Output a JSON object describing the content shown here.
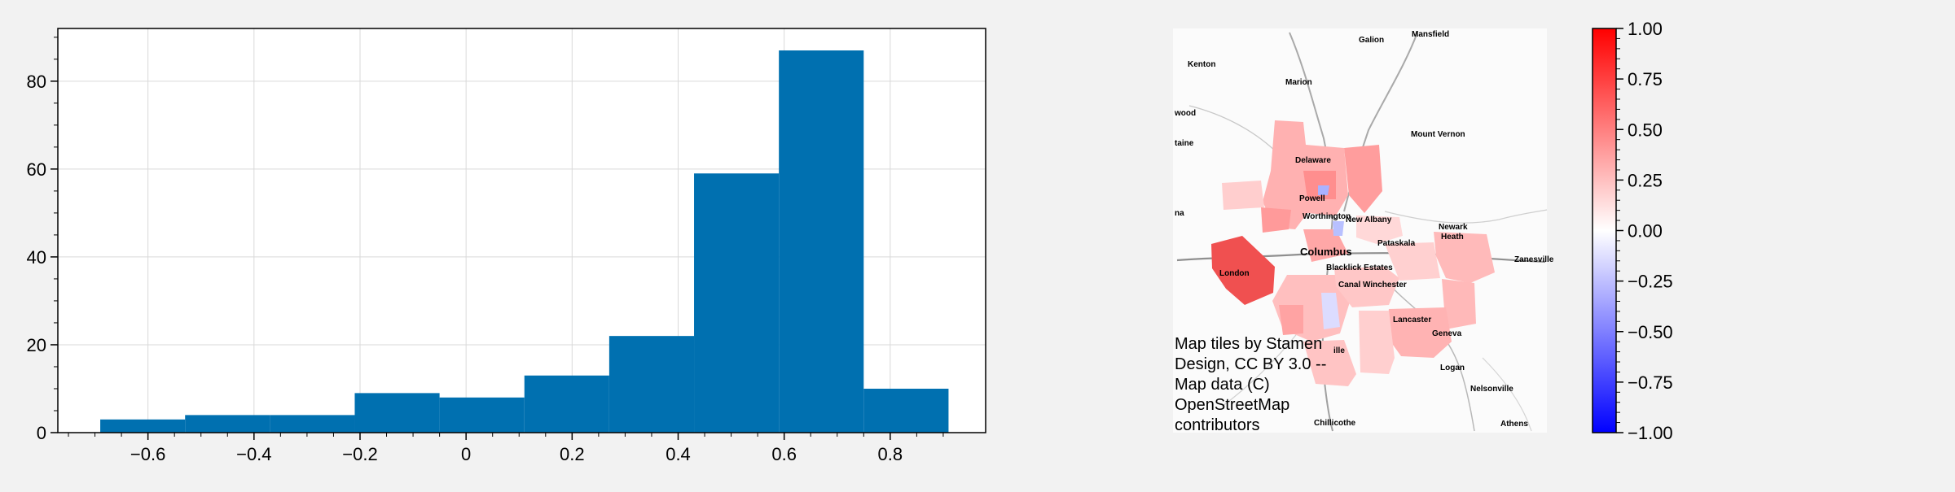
{
  "chart_data": [
    {
      "type": "bar",
      "subtype": "histogram",
      "bins": [
        {
          "x0": -0.69,
          "x1": -0.53,
          "count": 3
        },
        {
          "x0": -0.53,
          "x1": -0.37,
          "count": 4
        },
        {
          "x0": -0.37,
          "x1": -0.21,
          "count": 4
        },
        {
          "x0": -0.21,
          "x1": -0.05,
          "count": 9
        },
        {
          "x0": -0.05,
          "x1": 0.11,
          "count": 8
        },
        {
          "x0": 0.11,
          "x1": 0.27,
          "count": 13
        },
        {
          "x0": 0.27,
          "x1": 0.43,
          "count": 22
        },
        {
          "x0": 0.43,
          "x1": 0.59,
          "count": 59
        },
        {
          "x0": 0.59,
          "x1": 0.75,
          "count": 87
        },
        {
          "x0": 0.75,
          "x1": 0.91,
          "count": 10
        }
      ],
      "xlim": [
        -0.77,
        0.98
      ],
      "ylim": [
        0,
        92
      ],
      "xticks": [
        -0.6,
        -0.4,
        -0.2,
        0,
        0.2,
        0.4,
        0.6,
        0.8
      ],
      "xtick_labels": [
        "−0.6",
        "−0.4",
        "−0.2",
        "0",
        "0.2",
        "0.4",
        "0.6",
        "0.8"
      ],
      "yticks": [
        0,
        20,
        40,
        60,
        80
      ],
      "ytick_labels": [
        "0",
        "20",
        "40",
        "60",
        "80"
      ],
      "grid": true,
      "bar_color": "#0070b0"
    },
    {
      "type": "map",
      "colormap": "bwr",
      "vmin": -1.0,
      "vmax": 1.0,
      "colorbar_ticks": [
        1.0,
        0.75,
        0.5,
        0.25,
        0.0,
        -0.25,
        -0.5,
        -0.75,
        -1.0
      ],
      "colorbar_tick_labels": [
        "1.00",
        "0.75",
        "0.50",
        "0.25",
        "0.00",
        "−0.25",
        "−0.50",
        "−0.75",
        "−1.00"
      ],
      "place_labels": [
        "Galion",
        "Mansfield",
        "Kenton",
        "Marion",
        "wood",
        "taine",
        "Mount Vernon",
        "Delaware",
        "Powell",
        "na",
        "Worthington",
        "New Albany",
        "Newark",
        "Heath",
        "Pataskala",
        "Columbus",
        "Blacklick Estates",
        "Zanesville",
        "London",
        "Canal Winchester",
        "Lancaster",
        "Geneva",
        "ille",
        "Logan",
        "Nelsonville",
        "Chillicothe",
        "Athens"
      ],
      "attribution": [
        "Map tiles by Stamen",
        "Design, CC BY 3.0 --",
        "Map data (C)",
        "OpenStreetMap",
        "contributors"
      ],
      "colors": {
        "positive": "#ff0000",
        "neutral": "#ffffff",
        "negative": "#0000ff"
      }
    }
  ]
}
